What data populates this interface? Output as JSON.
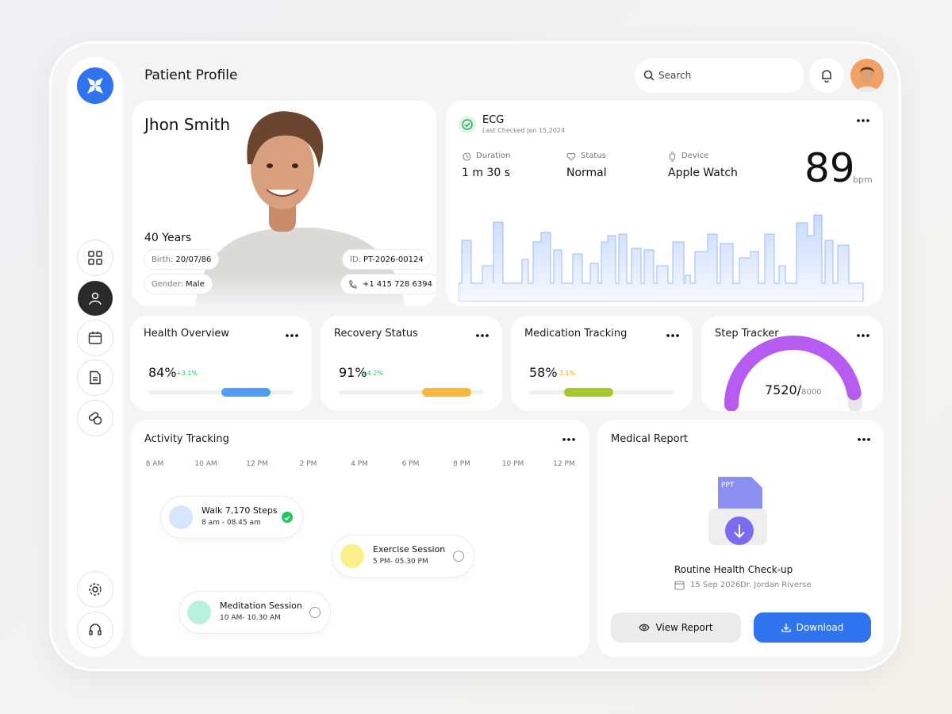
{
  "header": {
    "title": "Patient Profile",
    "search_placeholder": "Search"
  },
  "profile": {
    "name": "Jhon Smith",
    "age": "40 Years",
    "birth_label": "Birth:",
    "birth": "20/07/86",
    "gender_label": "Gender:",
    "gender": "Male",
    "id_label": "ID:",
    "id": "PT-2026-00124",
    "phone": "+1 415 728 6394"
  },
  "ecg": {
    "title": "ECG",
    "last_checked": "Last Checked Jan 15,2024",
    "duration_label": "Duration",
    "duration": "1 m 30 s",
    "status_label": "Status",
    "status": "Normal",
    "device_label": "Device",
    "device": "Apple Watch",
    "bpm": 89,
    "bpm_unit": "bpm"
  },
  "metrics": [
    {
      "title": "Health Overview",
      "progress": {
        "value": 84,
        "label": "84%"
      },
      "change": "+3.1%",
      "change_color": "#22c55e",
      "color": "#4d9ef5"
    },
    {
      "title": "Recovery Status",
      "progress": {
        "value": 91,
        "label": "91%"
      },
      "change": "+4.2%",
      "change_color": "#22c55e",
      "color": "#fbb73c"
    },
    {
      "title": "Medication Tracking",
      "progress": {
        "value": 58,
        "label": "58%"
      },
      "change": "-3.1%",
      "change_color": "#f59e0b",
      "color": "#a3c92a"
    }
  ],
  "step_tracker": {
    "title": "Step Tracker",
    "steps": {
      "value": 7520,
      "label": "7520/"
    },
    "goal": 8000,
    "color": "#b65cf0"
  },
  "activity": {
    "title": "Activity Tracking",
    "times": [
      "8 AM",
      "10 AM",
      "12 PM",
      "2 PM",
      "4 PM",
      "6 PM",
      "8 PM",
      "10 PM",
      "12 PM"
    ],
    "events": [
      {
        "title": "Walk 7,170 Steps",
        "time": "8 am - 08.45 am",
        "done": true,
        "color": "#d6e6fb"
      },
      {
        "title": "Exercise Session",
        "time": "5 PM- 05.30 PM",
        "done": false,
        "color": "#fbf08a"
      },
      {
        "title": "Meditation Session",
        "time": "10 AM- 10.30 AM",
        "done": false,
        "color": "#b9f2dc"
      }
    ]
  },
  "report": {
    "title": "Medical Report",
    "file_type": "PPT",
    "name": "Routine Health Check-up",
    "date": "15 Sep 2026",
    "doctor": "Dr. Jordan Riverse",
    "buttons": [
      "View Report",
      "Download"
    ]
  }
}
